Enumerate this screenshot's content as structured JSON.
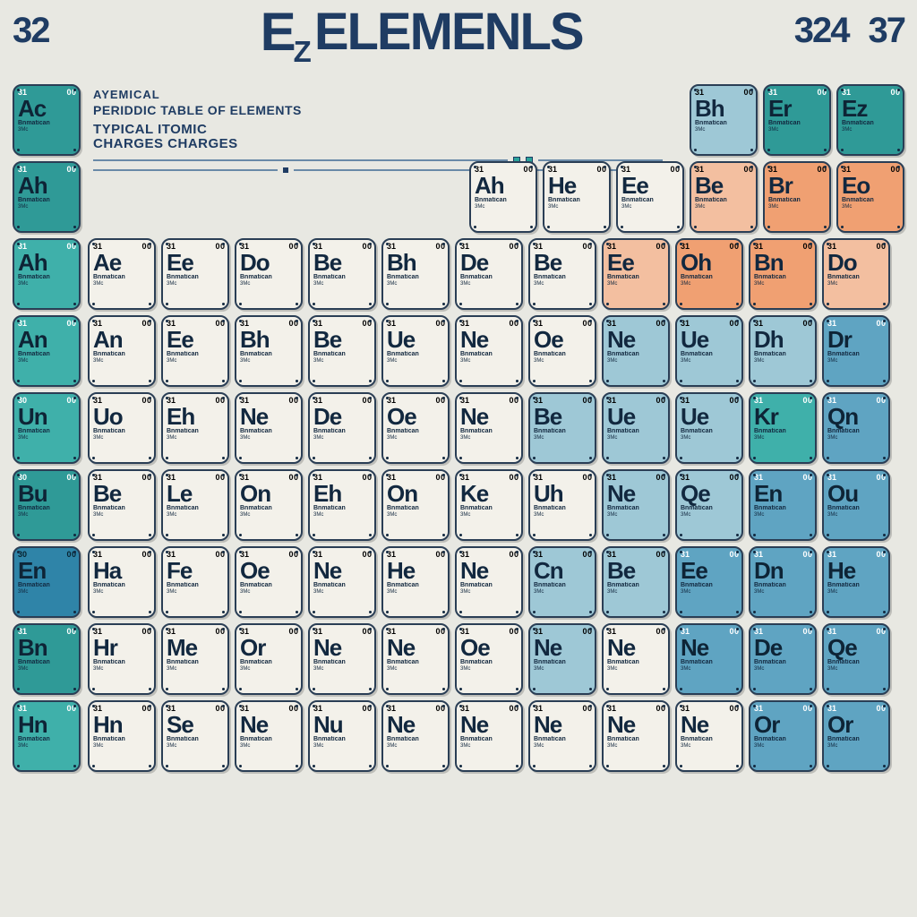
{
  "header": {
    "left_num": "32",
    "ez": "E",
    "ez_sub": "Z",
    "title": "ELEMENLS",
    "right_num_a": "324",
    "right_num_b": "37"
  },
  "subtitle": {
    "line1": "AYEMICAL",
    "line2": "PERIDDIC TABLE OF ELEMENTS",
    "line3a": "TYPICAL ITOMIC",
    "line3b": "CHARGES CHARGES"
  },
  "colors": {
    "teal": "#2f9a97",
    "teal2": "#3fb0aa",
    "ltblue": "#9ec8d6",
    "blue": "#5fa4c2",
    "dblue": "#2f84a8",
    "orange": "#f0a072",
    "peach": "#f3bfa0",
    "white": "#f3f1ea",
    "text_dark": "#12283f",
    "border": "#2a3e55",
    "bg": "#e8e8e2"
  },
  "cell_defaults": {
    "tl": "31",
    "tr": "0 0",
    "name": "Bnmatican",
    "sub": "3Mc"
  },
  "left_col": [
    {
      "sym": "Ac",
      "cls": "teal"
    },
    {
      "sym": "Ah",
      "cls": "teal"
    },
    {
      "sym": "Ah",
      "cls": "teal2"
    },
    {
      "sym": "An",
      "cls": "teal2"
    },
    {
      "sym": "Un",
      "cls": "teal2",
      "tl": "30"
    },
    {
      "sym": "Bu",
      "cls": "teal",
      "tl": "30"
    },
    {
      "sym": "En",
      "cls": "dblue",
      "tl": "30"
    },
    {
      "sym": "Bn",
      "cls": "teal",
      "tl": "31"
    },
    {
      "sym": "Hn",
      "cls": "teal2",
      "tl": "31"
    }
  ],
  "row1_right": [
    {
      "sym": "Bh",
      "cls": "ltblue"
    },
    {
      "sym": "Er",
      "cls": "teal"
    },
    {
      "sym": "Ez",
      "cls": "teal"
    }
  ],
  "row2": [
    {
      "sym": "Ah",
      "cls": "white"
    },
    {
      "sym": "He",
      "cls": "white"
    },
    {
      "sym": "Ee",
      "cls": "white"
    },
    {
      "sym": "Be",
      "cls": "peach"
    },
    {
      "sym": "Br",
      "cls": "orange"
    },
    {
      "sym": "Eo",
      "cls": "orange"
    }
  ],
  "row3": [
    {
      "sym": "Ae",
      "cls": "white"
    },
    {
      "sym": "Ee",
      "cls": "white"
    },
    {
      "sym": "Do",
      "cls": "white"
    },
    {
      "sym": "Be",
      "cls": "white"
    },
    {
      "sym": "Bh",
      "cls": "white"
    },
    {
      "sym": "De",
      "cls": "white"
    },
    {
      "sym": "Be",
      "cls": "white"
    },
    {
      "sym": "Ee",
      "cls": "peach"
    },
    {
      "sym": "Oh",
      "cls": "orange"
    },
    {
      "sym": "Bn",
      "cls": "orange"
    },
    {
      "sym": "Do",
      "cls": "peach"
    }
  ],
  "row4": [
    {
      "sym": "An",
      "cls": "white"
    },
    {
      "sym": "Ee",
      "cls": "white"
    },
    {
      "sym": "Bh",
      "cls": "white"
    },
    {
      "sym": "Be",
      "cls": "white"
    },
    {
      "sym": "Ue",
      "cls": "white"
    },
    {
      "sym": "Ne",
      "cls": "white"
    },
    {
      "sym": "Oe",
      "cls": "white"
    },
    {
      "sym": "Ne",
      "cls": "ltblue"
    },
    {
      "sym": "Ue",
      "cls": "ltblue"
    },
    {
      "sym": "Dh",
      "cls": "ltblue"
    },
    {
      "sym": "Dr",
      "cls": "blue"
    }
  ],
  "row5": [
    {
      "sym": "Uo",
      "cls": "white"
    },
    {
      "sym": "Eh",
      "cls": "white"
    },
    {
      "sym": "Ne",
      "cls": "white"
    },
    {
      "sym": "De",
      "cls": "white"
    },
    {
      "sym": "Oe",
      "cls": "white"
    },
    {
      "sym": "Ne",
      "cls": "white"
    },
    {
      "sym": "Be",
      "cls": "ltblue"
    },
    {
      "sym": "Ue",
      "cls": "ltblue"
    },
    {
      "sym": "Ue",
      "cls": "ltblue"
    },
    {
      "sym": "Kr",
      "cls": "teal2"
    },
    {
      "sym": "Qn",
      "cls": "blue"
    }
  ],
  "row6": [
    {
      "sym": "Be",
      "cls": "white"
    },
    {
      "sym": "Le",
      "cls": "white"
    },
    {
      "sym": "On",
      "cls": "white"
    },
    {
      "sym": "Eh",
      "cls": "white"
    },
    {
      "sym": "On",
      "cls": "white"
    },
    {
      "sym": "Ke",
      "cls": "white"
    },
    {
      "sym": "Uh",
      "cls": "white"
    },
    {
      "sym": "Ne",
      "cls": "ltblue"
    },
    {
      "sym": "Qe",
      "cls": "ltblue"
    },
    {
      "sym": "En",
      "cls": "blue"
    },
    {
      "sym": "Ou",
      "cls": "blue"
    }
  ],
  "row7": [
    {
      "sym": "Ha",
      "cls": "white"
    },
    {
      "sym": "Fe",
      "cls": "white"
    },
    {
      "sym": "Oe",
      "cls": "white"
    },
    {
      "sym": "Ne",
      "cls": "white"
    },
    {
      "sym": "He",
      "cls": "white"
    },
    {
      "sym": "Ne",
      "cls": "white"
    },
    {
      "sym": "Cn",
      "cls": "ltblue"
    },
    {
      "sym": "Be",
      "cls": "ltblue"
    },
    {
      "sym": "Ee",
      "cls": "blue"
    },
    {
      "sym": "Dn",
      "cls": "blue"
    },
    {
      "sym": "He",
      "cls": "blue"
    }
  ],
  "row8": [
    {
      "sym": "Hr",
      "cls": "white"
    },
    {
      "sym": "Me",
      "cls": "white"
    },
    {
      "sym": "Or",
      "cls": "white"
    },
    {
      "sym": "Ne",
      "cls": "white"
    },
    {
      "sym": "Ne",
      "cls": "white"
    },
    {
      "sym": "Oe",
      "cls": "white"
    },
    {
      "sym": "Ne",
      "cls": "ltblue"
    },
    {
      "sym": "Ne",
      "cls": "white"
    },
    {
      "sym": "Ne",
      "cls": "blue"
    },
    {
      "sym": "De",
      "cls": "blue"
    },
    {
      "sym": "Qe",
      "cls": "blue"
    }
  ],
  "row9": [
    {
      "sym": "Hn",
      "cls": "white"
    },
    {
      "sym": "Se",
      "cls": "white"
    },
    {
      "sym": "Ne",
      "cls": "white"
    },
    {
      "sym": "Nu",
      "cls": "white"
    },
    {
      "sym": "Ne",
      "cls": "white"
    },
    {
      "sym": "Ne",
      "cls": "white"
    },
    {
      "sym": "Ne",
      "cls": "white"
    },
    {
      "sym": "Ne",
      "cls": "white"
    },
    {
      "sym": "Ne",
      "cls": "white"
    },
    {
      "sym": "Or",
      "cls": "blue"
    },
    {
      "sym": "Or",
      "cls": "blue"
    }
  ]
}
